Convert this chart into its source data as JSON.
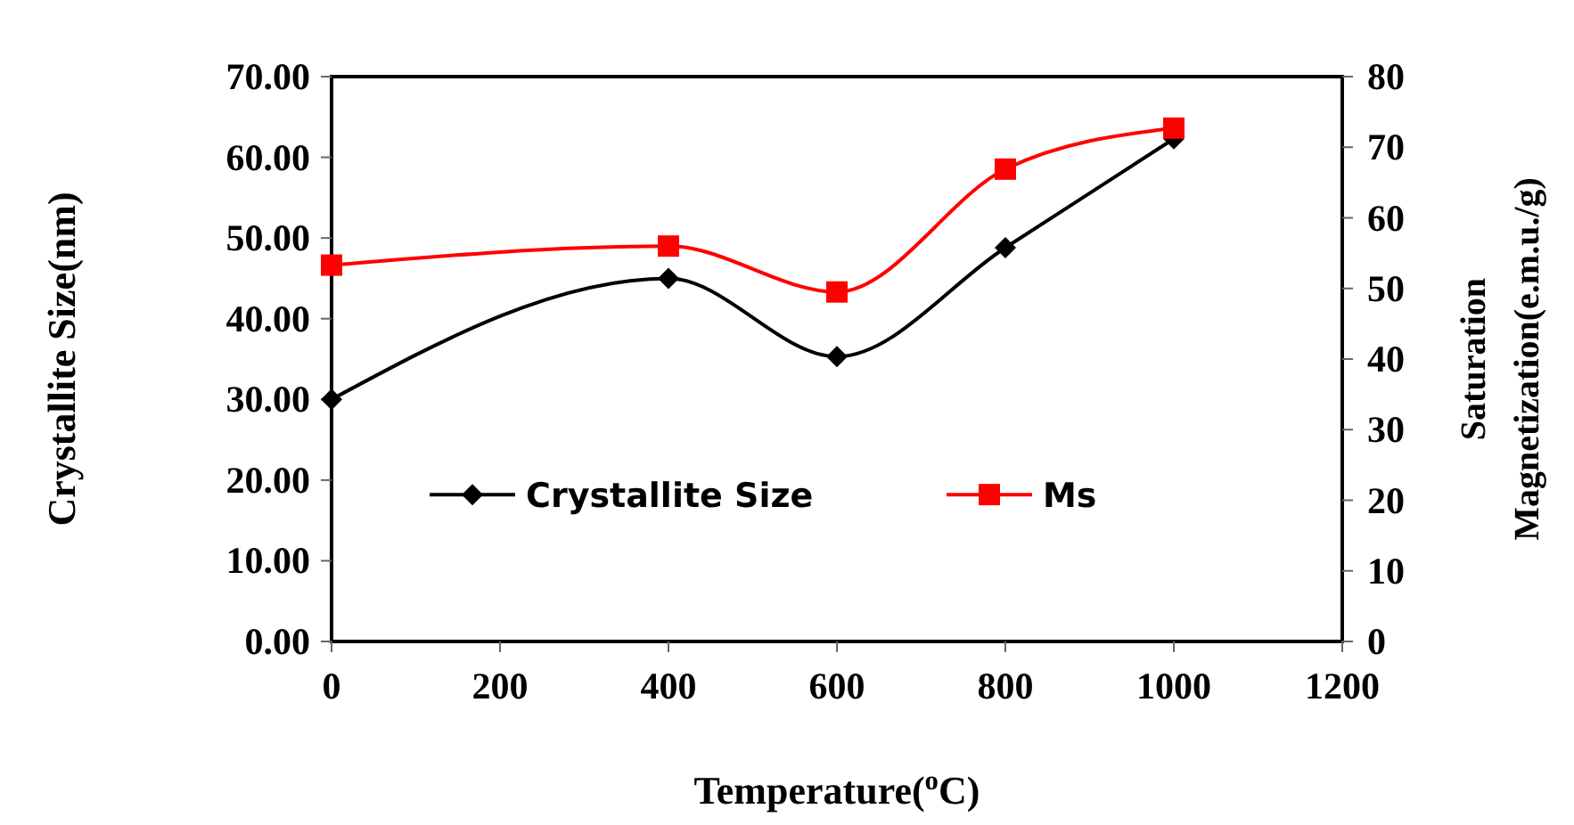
{
  "chart_data": {
    "type": "line",
    "xlabel": "Temperature($^{o}$C)",
    "ylabel": "Crystallite Size(nm)",
    "y2label": "Saturation Magnetization(e.m.u./g)",
    "x": [
      0,
      400,
      600,
      800,
      1000
    ],
    "xlim": [
      0,
      1200
    ],
    "xticks": [
      0,
      200,
      400,
      600,
      800,
      1000,
      1200
    ],
    "ylim": [
      0,
      70
    ],
    "yticks": [
      {
        "value": 0,
        "label": "0.00"
      },
      {
        "value": 10,
        "label": "10.00"
      },
      {
        "value": 20,
        "label": "20.00"
      },
      {
        "value": 30,
        "label": "30.00"
      },
      {
        "value": 40,
        "label": "40.00"
      },
      {
        "value": 50,
        "label": "50.00"
      },
      {
        "value": 60,
        "label": "60.00"
      },
      {
        "value": 70,
        "label": "70.00"
      }
    ],
    "y2lim": [
      0,
      80
    ],
    "y2ticks": [
      0,
      10,
      20,
      30,
      40,
      50,
      60,
      70,
      80
    ],
    "series": [
      {
        "name": "Crystallite Size",
        "color": "#000000",
        "marker": "diamond",
        "values": [
          30.0,
          45.0,
          35.3,
          48.8,
          62.3
        ]
      },
      {
        "name": "Ms",
        "color": "#ff0000",
        "marker": "square",
        "axis": "y2",
        "values": [
          53.3,
          56.0,
          49.5,
          66.9,
          72.7
        ]
      }
    ],
    "legend": "bottom",
    "grid": false,
    "line_style": "solid"
  }
}
